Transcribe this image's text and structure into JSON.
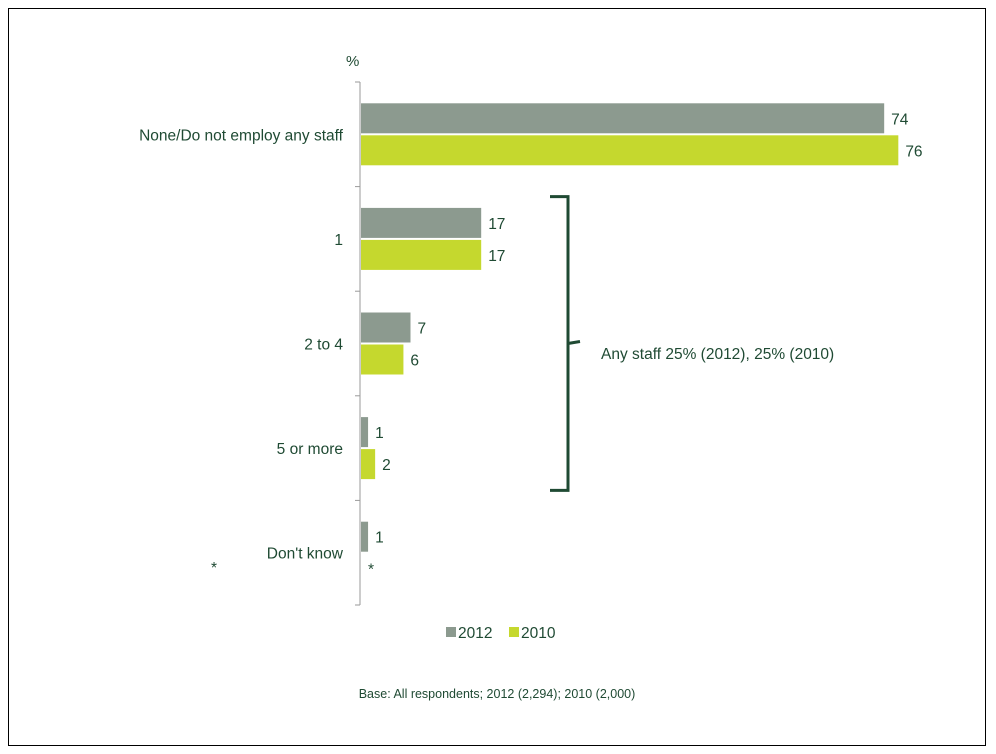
{
  "chart_data": {
    "type": "bar",
    "orientation": "horizontal",
    "unit_label": "%",
    "categories": [
      "None/Do not employ any staff",
      "1",
      "2 to 4",
      "5 or more",
      "Don't know"
    ],
    "series": [
      {
        "name": "2012",
        "color": "#8c9a8f",
        "values": [
          74,
          17,
          7,
          1,
          1
        ],
        "labels": [
          "74",
          "17",
          "7",
          "1",
          "1"
        ]
      },
      {
        "name": "2010",
        "color": "#c5d82e",
        "values": [
          76,
          17,
          6,
          2,
          0
        ],
        "labels": [
          "76",
          "17",
          "6",
          "2",
          "*"
        ]
      }
    ],
    "xlim": [
      0,
      80
    ],
    "annotation": "Any staff 25% (2012),  25% (2010)",
    "annotation_bracket_categories": [
      "1",
      "2 to 4",
      "5 or more"
    ],
    "stray_marker": "*",
    "legend_position": "bottom",
    "grid": false,
    "base_note": "Base: All respondents; 2012 (2,294); 2010 (2,000)",
    "accent_color": "#1f4a33"
  }
}
